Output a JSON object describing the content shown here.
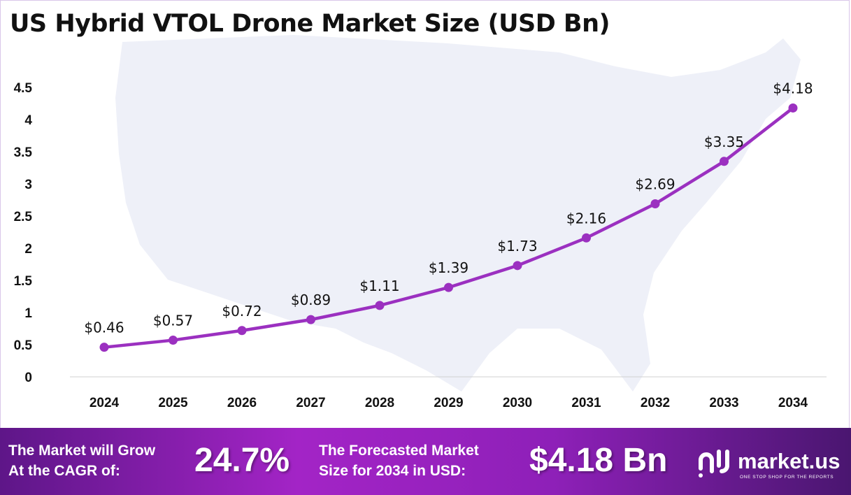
{
  "chart_data": {
    "type": "line",
    "title": "US Hybrid VTOL Drone Market Size (USD Bn)",
    "categories": [
      "2024",
      "2025",
      "2026",
      "2027",
      "2028",
      "2029",
      "2030",
      "2031",
      "2032",
      "2033",
      "2034"
    ],
    "values": [
      0.46,
      0.57,
      0.72,
      0.89,
      1.11,
      1.39,
      1.73,
      2.16,
      2.69,
      3.35,
      4.18
    ],
    "data_labels": [
      "$0.46",
      "$0.57",
      "$0.72",
      "$0.89",
      "$1.11",
      "$1.39",
      "$1.73",
      "$2.16",
      "$2.69",
      "$3.35",
      "$4.18"
    ],
    "yticks": [
      "0",
      "0.5",
      "1",
      "1.5",
      "2",
      "2.5",
      "3",
      "3.5",
      "4",
      "4.5"
    ],
    "ylim": [
      0,
      4.5
    ],
    "xlabel": "",
    "ylabel": "",
    "grid": false,
    "line_color": "#9b30c0",
    "background_image": "us-map-silhouette"
  },
  "footer": {
    "cagr_label": [
      "The Market will Grow",
      "At the CAGR of:"
    ],
    "cagr_value": "24.7%",
    "forecast_label": [
      "The Forecasted Market",
      "Size for 2034 in USD:"
    ],
    "forecast_value": "$4.18 Bn",
    "logo_text": "market.us",
    "logo_tagline": "ONE STOP SHOP FOR THE REPORTS"
  }
}
